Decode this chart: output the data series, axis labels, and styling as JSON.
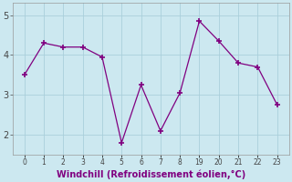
{
  "y_data": [
    3.5,
    4.3,
    4.2,
    4.2,
    3.95,
    1.8,
    3.25,
    2.1,
    3.05,
    4.85,
    4.35,
    3.8,
    3.7,
    2.75
  ],
  "x_positions": [
    0,
    1,
    2,
    3,
    4,
    5,
    6,
    7,
    8,
    9,
    10,
    11,
    12,
    13
  ],
  "xtick_labels": [
    "0",
    "1",
    "2",
    "3",
    "4",
    "5",
    "6",
    "7",
    "8",
    "19",
    "20",
    "21",
    "22",
    "23"
  ],
  "line_color": "#800080",
  "bg_color": "#cce8f0",
  "grid_color": "#aacfdb",
  "xlabel": "Windchill (Refroidissement éolien,°C)",
  "xlabel_color": "#800080",
  "yticks": [
    2,
    3,
    4,
    5
  ],
  "ylim": [
    1.5,
    5.3
  ],
  "xlim": [
    -0.6,
    13.6
  ]
}
